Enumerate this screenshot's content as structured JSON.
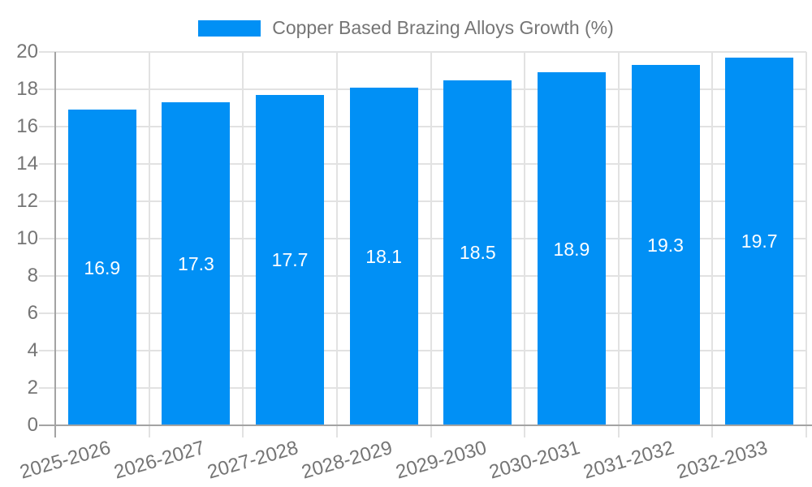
{
  "legend": {
    "label": "Copper Based Brazing Alloys Growth (%)"
  },
  "chart_data": {
    "type": "bar",
    "title": "Copper Based Brazing Alloys Growth (%)",
    "series": [
      {
        "name": "Copper Based Brazing Alloys Growth (%)",
        "values": [
          16.9,
          17.3,
          17.7,
          18.1,
          18.5,
          18.9,
          19.3,
          19.7
        ]
      }
    ],
    "categories": [
      "2025-2026",
      "2026-2027",
      "2027-2028",
      "2028-2029",
      "2029-2030",
      "2030-2031",
      "2031-2032",
      "2032-2033"
    ],
    "bar_value_labels": [
      "16.9",
      "17.3",
      "17.7",
      "18.1",
      "18.5",
      "18.9",
      "19.3",
      "19.7"
    ],
    "xlabel": "",
    "ylabel": "",
    "ylim": [
      0,
      20
    ],
    "yticks": [
      0,
      2,
      4,
      6,
      8,
      10,
      12,
      14,
      16,
      18,
      20
    ],
    "grid": true,
    "legend_position": "top-center",
    "x_label_rotation_deg": -16,
    "colors": {
      "bar": "#0190f5",
      "bar_label": "#ffffff",
      "axis_text": "#757575",
      "grid_line": "#e2e2e2",
      "axis_line": "#a3a3a3",
      "background": "#ffffff"
    }
  }
}
